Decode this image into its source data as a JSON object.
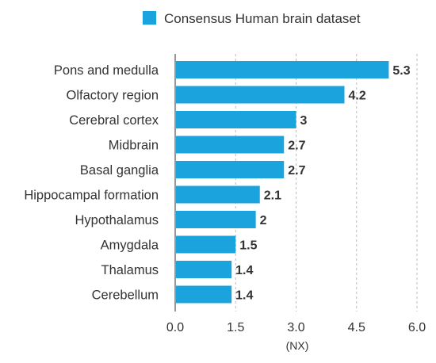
{
  "chart_data": {
    "type": "bar",
    "orientation": "horizontal",
    "categories": [
      "Pons and medulla",
      "Olfactory region",
      "Cerebral cortex",
      "Midbrain",
      "Basal ganglia",
      "Hippocampal formation",
      "Hypothalamus",
      "Amygdala",
      "Thalamus",
      "Cerebellum"
    ],
    "values": [
      5.3,
      4.2,
      3,
      2.7,
      2.7,
      2.1,
      2,
      1.5,
      1.4,
      1.4
    ],
    "value_labels": [
      "5.3",
      "4.2",
      "3",
      "2.7",
      "2.7",
      "2.1",
      "2",
      "1.5",
      "1.4",
      "1.4"
    ],
    "series": [
      {
        "name": "Consensus Human brain dataset",
        "color": "#1aa3dc"
      }
    ],
    "xlabel": "(NX)",
    "ylabel": "",
    "xlim": [
      0,
      6
    ],
    "xticks": [
      0,
      1.5,
      3,
      4.5,
      6
    ],
    "xtick_labels": [
      "0.0",
      "1.5",
      "3.0",
      "4.5",
      "6.0"
    ],
    "grid": "vertical dashed",
    "legend_position": "top"
  }
}
